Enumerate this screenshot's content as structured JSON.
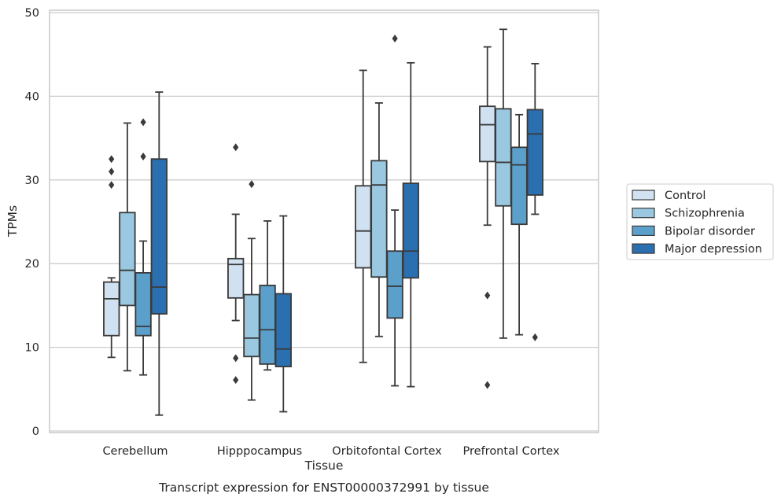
{
  "chart_data": {
    "type": "box",
    "title": "",
    "caption": "Transcript expression for ENST00000372991 by tissue",
    "xlabel": "Tissue",
    "ylabel": "TPMs",
    "ylim": [
      0,
      50
    ],
    "yticks": [
      0,
      10,
      20,
      30,
      40,
      50
    ],
    "grid": "horizontal",
    "legend_placement": "right",
    "categories": [
      "Cerebellum",
      "Hipppocampus",
      "Orbitofontal Cortex",
      "Prefrontal Cortex"
    ],
    "series": [
      {
        "name": "Control",
        "color": "#d0e1f2",
        "boxes": [
          {
            "whisker_low": 8.8,
            "q1": 11.4,
            "median": 15.8,
            "q3": 17.8,
            "whisker_high": 18.3,
            "outliers": [
              29.4,
              31.0,
              32.5
            ]
          },
          {
            "whisker_low": 13.2,
            "q1": 15.9,
            "median": 19.9,
            "q3": 20.6,
            "whisker_high": 25.9,
            "outliers": [
              6.1,
              8.7,
              33.9
            ]
          },
          {
            "whisker_low": 8.2,
            "q1": 19.5,
            "median": 23.9,
            "q3": 29.3,
            "whisker_high": 43.1,
            "outliers": []
          },
          {
            "whisker_low": 24.6,
            "q1": 32.2,
            "median": 36.6,
            "q3": 38.8,
            "whisker_high": 45.9,
            "outliers": [
              5.5,
              16.2
            ]
          }
        ]
      },
      {
        "name": "Schizophrenia",
        "color": "#9ac8e0",
        "boxes": [
          {
            "whisker_low": 7.2,
            "q1": 15.0,
            "median": 19.2,
            "q3": 26.1,
            "whisker_high": 36.8,
            "outliers": []
          },
          {
            "whisker_low": 3.7,
            "q1": 8.9,
            "median": 11.1,
            "q3": 16.3,
            "whisker_high": 23.0,
            "outliers": [
              29.5
            ]
          },
          {
            "whisker_low": 11.3,
            "q1": 18.4,
            "median": 29.4,
            "q3": 32.3,
            "whisker_high": 39.2,
            "outliers": []
          },
          {
            "whisker_low": 11.1,
            "q1": 26.9,
            "median": 32.1,
            "q3": 38.5,
            "whisker_high": 48.0,
            "outliers": []
          }
        ]
      },
      {
        "name": "Bipolar disorder",
        "color": "#5b9fcb",
        "boxes": [
          {
            "whisker_low": 6.7,
            "q1": 11.4,
            "median": 12.5,
            "q3": 18.9,
            "whisker_high": 22.7,
            "outliers": [
              32.8,
              36.9
            ]
          },
          {
            "whisker_low": 7.3,
            "q1": 8.0,
            "median": 12.1,
            "q3": 17.4,
            "whisker_high": 25.1,
            "outliers": []
          },
          {
            "whisker_low": 5.4,
            "q1": 13.5,
            "median": 17.3,
            "q3": 21.5,
            "whisker_high": 26.4,
            "outliers": [
              46.9
            ]
          },
          {
            "whisker_low": 11.5,
            "q1": 24.7,
            "median": 31.8,
            "q3": 33.9,
            "whisker_high": 37.8,
            "outliers": []
          }
        ]
      },
      {
        "name": "Major depression",
        "color": "#2a6fb0",
        "boxes": [
          {
            "whisker_low": 1.9,
            "q1": 14.0,
            "median": 17.2,
            "q3": 32.5,
            "whisker_high": 40.5,
            "outliers": []
          },
          {
            "whisker_low": 2.3,
            "q1": 7.7,
            "median": 9.8,
            "q3": 16.4,
            "whisker_high": 25.7,
            "outliers": []
          },
          {
            "whisker_low": 5.3,
            "q1": 18.3,
            "median": 21.5,
            "q3": 29.6,
            "whisker_high": 44.0,
            "outliers": []
          },
          {
            "whisker_low": 25.9,
            "q1": 28.2,
            "median": 35.5,
            "q3": 38.4,
            "whisker_high": 43.9,
            "outliers": [
              11.2
            ]
          }
        ]
      }
    ]
  }
}
